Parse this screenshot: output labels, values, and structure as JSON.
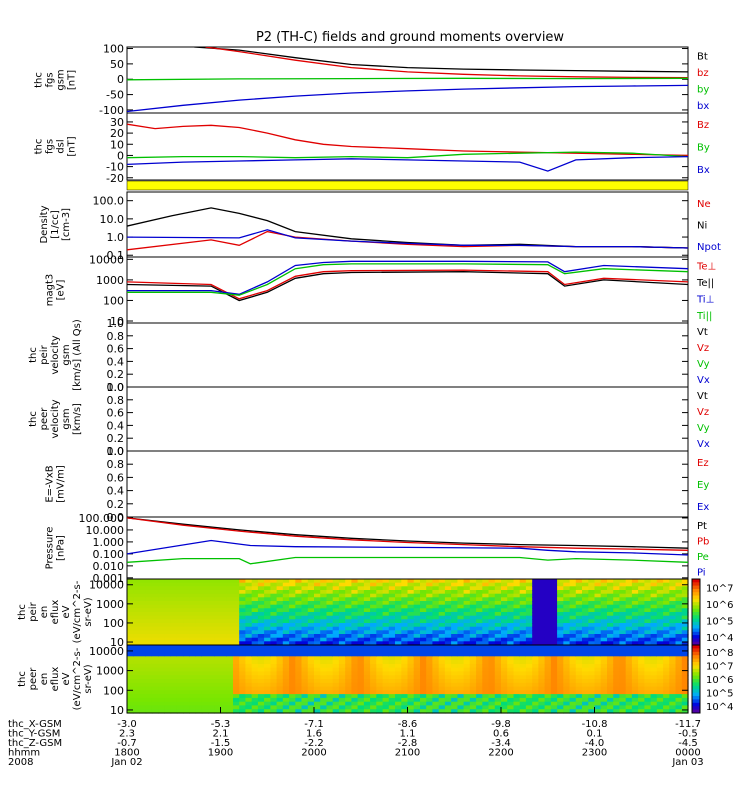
{
  "title": "P2 (TH-C) fields and ground moments overview",
  "chart_data": {
    "type": "line",
    "x_axis": {
      "ticks": [
        "1800",
        "1900",
        "2000",
        "2100",
        "2200",
        "2300",
        "0000"
      ],
      "row_labels": [
        "thc_X-GSM",
        "thc_Y-GSM",
        "thc_Z-GSM",
        "hhmm",
        "2008"
      ],
      "rows": [
        [
          "-3.0",
          "-5.3",
          "-7.1",
          "-8.6",
          "-9.8",
          "-10.8",
          "-11.7"
        ],
        [
          "2.3",
          "2.1",
          "1.6",
          "1.1",
          "0.6",
          "0.1",
          "-0.5"
        ],
        [
          "-0.7",
          "-1.5",
          "-2.2",
          "-2.8",
          "-3.4",
          "-4.0",
          "-4.5"
        ],
        [
          "1800",
          "1900",
          "2000",
          "2100",
          "2200",
          "2300",
          "0000"
        ],
        [
          "Jan 02",
          "",
          "",
          "",
          "",
          "",
          "Jan 03"
        ]
      ]
    },
    "panels": [
      {
        "id": "fgs_gsm",
        "ylabel": [
          "thc",
          "fgs",
          "gsm",
          "[nT]"
        ],
        "yscale": "linear",
        "ylim": [
          -110,
          105
        ],
        "yticks": [
          "100",
          "50",
          "0",
          "-50",
          "-100"
        ],
        "ytick_values": [
          100,
          50,
          0,
          -50,
          -100
        ],
        "series": [
          {
            "name": "Bt",
            "color": "#000000",
            "x": [
              0.12,
              0.2,
              0.3,
              0.4,
              0.5,
              0.6,
              0.7,
              0.8,
              0.9,
              1.0
            ],
            "values": [
              105,
              95,
              70,
              48,
              38,
              33,
              30,
              28,
              26,
              24
            ]
          },
          {
            "name": "bz",
            "color": "#e00000",
            "x": [
              0.14,
              0.2,
              0.3,
              0.4,
              0.5,
              0.6,
              0.7,
              0.8,
              0.9,
              1.0
            ],
            "values": [
              105,
              90,
              62,
              38,
              24,
              16,
              11,
              8,
              6,
              5
            ]
          },
          {
            "name": "by",
            "color": "#00c000",
            "x": [
              0,
              0.2,
              0.4,
              0.6,
              0.8,
              1.0
            ],
            "values": [
              -2,
              1,
              2,
              3,
              2,
              3
            ]
          },
          {
            "name": "bx",
            "color": "#0000d0",
            "x": [
              0,
              0.1,
              0.2,
              0.3,
              0.4,
              0.5,
              0.6,
              0.7,
              0.8,
              0.9,
              1.0
            ],
            "values": [
              -105,
              -85,
              -68,
              -55,
              -45,
              -38,
              -32,
              -28,
              -24,
              -22,
              -20
            ]
          }
        ]
      },
      {
        "id": "fgs_dsl",
        "ylabel": [
          "thc",
          "fgs",
          "dsl",
          "[nT]"
        ],
        "yscale": "linear",
        "ylim": [
          -22,
          38
        ],
        "yticks": [
          "30",
          "20",
          "10",
          "0",
          "-10",
          "-20"
        ],
        "ytick_values": [
          30,
          20,
          10,
          0,
          -10,
          -20
        ],
        "series": [
          {
            "name": "Bz",
            "color": "#e00000",
            "x": [
              0,
              0.05,
              0.1,
              0.15,
              0.2,
              0.25,
              0.3,
              0.35,
              0.4,
              0.5,
              0.6,
              0.7,
              0.8,
              0.9,
              1.0
            ],
            "values": [
              28,
              24,
              26,
              27,
              25,
              20,
              14,
              10,
              8,
              6,
              4,
              3,
              2,
              1,
              0
            ]
          },
          {
            "name": "By",
            "color": "#00c000",
            "x": [
              0,
              0.1,
              0.2,
              0.3,
              0.4,
              0.5,
              0.6,
              0.7,
              0.8,
              0.9,
              1.0
            ],
            "values": [
              -2,
              -1,
              -1,
              -2,
              -1,
              -2,
              1,
              2,
              3,
              2,
              -1
            ]
          },
          {
            "name": "Bx",
            "color": "#0000d0",
            "x": [
              0,
              0.1,
              0.2,
              0.3,
              0.4,
              0.5,
              0.6,
              0.7,
              0.75,
              0.8,
              0.9,
              1.0
            ],
            "values": [
              -8,
              -6,
              -5,
              -4,
              -3,
              -4,
              -5,
              -6,
              -14,
              -4,
              -2,
              -1
            ]
          }
        ]
      },
      {
        "id": "density",
        "ylabel": [
          "Density",
          "[1/cc]",
          "[cm-3]"
        ],
        "yscale": "log",
        "ylim": [
          0.08,
          300
        ],
        "yticks": [
          "100.0",
          "10.0",
          "1.0",
          "0.1"
        ],
        "ytick_values": [
          100,
          10,
          1,
          0.1
        ],
        "series": [
          {
            "name": "Ne",
            "color": "#e00000",
            "x": [
              0,
              0.15,
              0.2,
              0.25,
              0.3,
              0.4,
              0.5,
              0.6,
              0.7,
              0.8,
              0.9,
              1.0
            ],
            "values": [
              0.2,
              0.7,
              0.35,
              2.0,
              1.0,
              0.6,
              0.4,
              0.3,
              0.35,
              0.3,
              0.3,
              0.25
            ]
          },
          {
            "name": "Ni",
            "color": "#000000",
            "x": [
              0,
              0.08,
              0.15,
              0.2,
              0.25,
              0.3,
              0.4,
              0.5,
              0.6,
              0.7,
              0.8,
              0.9,
              1.0
            ],
            "values": [
              4,
              15,
              40,
              20,
              8,
              2,
              0.8,
              0.5,
              0.35,
              0.4,
              0.3,
              0.3,
              0.25
            ]
          },
          {
            "name": "Npot",
            "color": "#0000d0",
            "x": [
              0,
              0.2,
              0.25,
              0.3,
              0.4,
              0.5,
              0.6,
              0.7,
              0.8,
              0.9,
              1.0
            ],
            "values": [
              1,
              0.9,
              2.5,
              0.9,
              0.6,
              0.45,
              0.35,
              0.35,
              0.3,
              0.3,
              0.25
            ]
          }
        ]
      },
      {
        "id": "magt3",
        "ylabel": [
          "magt3",
          "[eV]"
        ],
        "yscale": "log",
        "ylim": [
          8,
          13000
        ],
        "yticks": [
          "10000",
          "1000",
          "100",
          "10"
        ],
        "ytick_values": [
          10000,
          1000,
          100,
          10
        ],
        "series": [
          {
            "name": "Te⊥",
            "color": "#e00000",
            "x": [
              0,
              0.15,
              0.2,
              0.25,
              0.3,
              0.35,
              0.4,
              0.6,
              0.75,
              0.78,
              0.85,
              1.0
            ],
            "values": [
              800,
              600,
              120,
              300,
              1500,
              2500,
              2800,
              3000,
              2500,
              600,
              1200,
              800
            ]
          },
          {
            "name": "Te||",
            "color": "#000000",
            "x": [
              0,
              0.15,
              0.2,
              0.25,
              0.3,
              0.35,
              0.4,
              0.6,
              0.75,
              0.78,
              0.85,
              1.0
            ],
            "values": [
              600,
              500,
              100,
              250,
              1200,
              2000,
              2300,
              2500,
              2000,
              500,
              1000,
              600
            ]
          },
          {
            "name": "Ti⊥",
            "color": "#0000d0",
            "x": [
              0,
              0.15,
              0.2,
              0.25,
              0.3,
              0.35,
              0.4,
              0.6,
              0.75,
              0.78,
              0.85,
              1.0
            ],
            "values": [
              300,
              300,
              200,
              800,
              5000,
              7000,
              8000,
              8000,
              7500,
              2500,
              5000,
              3500
            ]
          },
          {
            "name": "Ti||",
            "color": "#00c000",
            "x": [
              0,
              0.15,
              0.2,
              0.25,
              0.3,
              0.35,
              0.4,
              0.6,
              0.75,
              0.78,
              0.85,
              1.0
            ],
            "values": [
              250,
              250,
              180,
              600,
              3500,
              5500,
              6000,
              6000,
              5500,
              2000,
              3500,
              2500
            ]
          }
        ]
      },
      {
        "id": "peir_velocity",
        "ylabel": [
          "thc",
          "peir",
          "velocity",
          "gsm",
          "[km/s] (All Qs)"
        ],
        "yscale": "linear",
        "ylim": [
          0,
          1
        ],
        "yticks": [
          "1.0",
          "0.8",
          "0.6",
          "0.4",
          "0.2",
          "0.0"
        ],
        "ytick_values": [
          1,
          0.8,
          0.6,
          0.4,
          0.2,
          0
        ],
        "series": [
          {
            "name": "Vt",
            "color": "#000000",
            "x": [],
            "values": []
          },
          {
            "name": "Vz",
            "color": "#e00000",
            "x": [],
            "values": []
          },
          {
            "name": "Vy",
            "color": "#00c000",
            "x": [],
            "values": []
          },
          {
            "name": "Vx",
            "color": "#0000d0",
            "x": [],
            "values": []
          }
        ]
      },
      {
        "id": "peer_velocity",
        "ylabel": [
          "thc",
          "peer",
          "velocity",
          "gsm",
          "[km/s]"
        ],
        "yscale": "linear",
        "ylim": [
          0,
          1
        ],
        "yticks": [
          "1.0",
          "0.8",
          "0.6",
          "0.4",
          "0.2",
          "0.0"
        ],
        "ytick_values": [
          1,
          0.8,
          0.6,
          0.4,
          0.2,
          0
        ],
        "series": [
          {
            "name": "Vt",
            "color": "#000000",
            "x": [],
            "values": []
          },
          {
            "name": "Vz",
            "color": "#e00000",
            "x": [],
            "values": []
          },
          {
            "name": "Vy",
            "color": "#00c000",
            "x": [],
            "values": []
          },
          {
            "name": "Vx",
            "color": "#0000d0",
            "x": [],
            "values": []
          }
        ]
      },
      {
        "id": "efield",
        "ylabel": [
          "E=-VxB",
          "[mV/m]"
        ],
        "yscale": "linear",
        "ylim": [
          0,
          1
        ],
        "yticks": [
          "1.0",
          "0.8",
          "0.6",
          "0.4",
          "0.2",
          "0.0"
        ],
        "ytick_values": [
          1,
          0.8,
          0.6,
          0.4,
          0.2,
          0
        ],
        "series": [
          {
            "name": "Ez",
            "color": "#e00000",
            "x": [],
            "values": []
          },
          {
            "name": "Ey",
            "color": "#00c000",
            "x": [],
            "values": []
          },
          {
            "name": "Ex",
            "color": "#0000d0",
            "x": [],
            "values": []
          }
        ]
      },
      {
        "id": "pressure",
        "ylabel": [
          "Pressure",
          "[nPa]"
        ],
        "yscale": "log",
        "ylim": [
          0.0008,
          120
        ],
        "yticks": [
          "100.000",
          "10.000",
          "1.000",
          "0.100",
          "0.010",
          "0.001"
        ],
        "ytick_values": [
          100,
          10,
          1,
          0.1,
          0.01,
          0.001
        ],
        "series": [
          {
            "name": "Pt",
            "color": "#000000",
            "x": [
              0,
              0.1,
              0.2,
              0.3,
              0.4,
              0.5,
              0.6,
              0.7,
              0.8,
              0.9,
              1.0
            ],
            "values": [
              100,
              30,
              10,
              4,
              2,
              1.2,
              0.8,
              0.6,
              0.5,
              0.4,
              0.3
            ]
          },
          {
            "name": "Pb",
            "color": "#e00000",
            "x": [
              0,
              0.1,
              0.2,
              0.3,
              0.4,
              0.5,
              0.6,
              0.7,
              0.8,
              0.9,
              1.0
            ],
            "values": [
              100,
              25,
              8,
              3,
              1.5,
              0.9,
              0.6,
              0.4,
              0.3,
              0.25,
              0.2
            ]
          },
          {
            "name": "Pe",
            "color": "#00c000",
            "x": [
              0,
              0.1,
              0.2,
              0.22,
              0.3,
              0.5,
              0.7,
              0.75,
              0.8,
              0.9,
              1.0
            ],
            "values": [
              0.02,
              0.04,
              0.04,
              0.015,
              0.05,
              0.05,
              0.05,
              0.03,
              0.04,
              0.03,
              0.02
            ]
          },
          {
            "name": "Pi",
            "color": "#0000d0",
            "x": [
              0,
              0.15,
              0.22,
              0.3,
              0.5,
              0.7,
              0.75,
              0.8,
              0.9,
              1.0
            ],
            "values": [
              0.1,
              1.3,
              0.5,
              0.4,
              0.35,
              0.3,
              0.2,
              0.15,
              0.12,
              0.08
            ]
          }
        ]
      }
    ],
    "spectrograms": [
      {
        "id": "peir_en_eflux",
        "ylabel": [
          "thc",
          "peir",
          "en",
          "eflux",
          "eV",
          "(eV/cm^2-s-",
          "sr-eV)"
        ],
        "yscale": "log",
        "ylim": [
          7,
          20000
        ],
        "yticks": [
          "10000",
          "1000",
          "100",
          "10"
        ],
        "ytick_values": [
          10000,
          1000,
          100,
          10
        ],
        "colorbar_ticks": [
          "10^7",
          "10^6",
          "10^5",
          "10^4"
        ],
        "colorbar_values": [
          10000000,
          1000000,
          100000,
          10000
        ]
      },
      {
        "id": "peer_en_eflux",
        "ylabel": [
          "thc",
          "peer",
          "en",
          "eflux",
          "eV",
          "(eV/cm^2-s-",
          "sr-eV)"
        ],
        "yscale": "log",
        "ylim": [
          7,
          20000
        ],
        "yticks": [
          "10000",
          "1000",
          "100",
          "10"
        ],
        "ytick_values": [
          10000,
          1000,
          100,
          10
        ],
        "colorbar_ticks": [
          "10^8",
          "10^7",
          "10^6",
          "10^5",
          "10^4"
        ],
        "colorbar_values": [
          100000000,
          10000000,
          1000000,
          100000,
          10000
        ]
      }
    ]
  },
  "colors": {
    "black": "#000000",
    "red": "#e00000",
    "green": "#00c000",
    "blue": "#0000d0",
    "yellow": "#ffff00"
  }
}
